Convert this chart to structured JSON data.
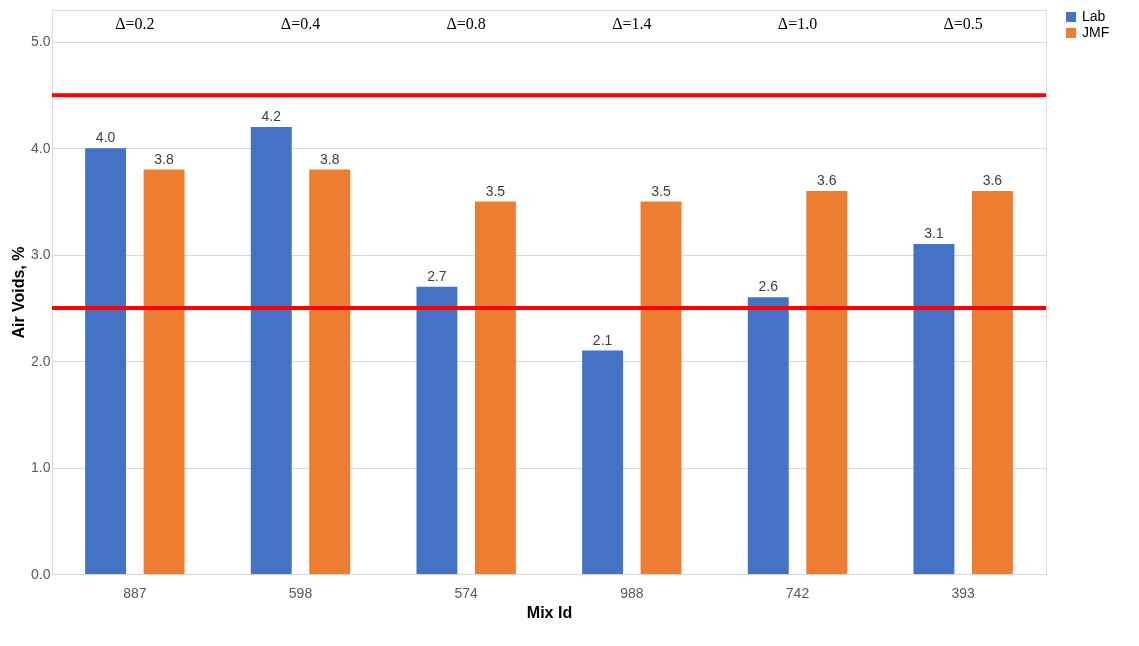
{
  "chart_data": {
    "type": "bar",
    "xlabel": "Mix Id",
    "ylabel": "Air Voids, %",
    "categories": [
      "887",
      "598",
      "574",
      "988",
      "742",
      "393"
    ],
    "series": [
      {
        "name": "Lab",
        "color": "#4472c4",
        "values": [
          4.0,
          4.2,
          2.7,
          2.1,
          2.6,
          3.1
        ],
        "value_labels": [
          "4.0",
          "4.2",
          "2.7",
          "2.1",
          "2.6",
          "3.1"
        ]
      },
      {
        "name": "JMF",
        "color": "#ed7d31",
        "values": [
          3.8,
          3.8,
          3.5,
          3.5,
          3.6,
          3.6
        ],
        "value_labels": [
          "3.8",
          "3.8",
          "3.5",
          "3.5",
          "3.6",
          "3.6"
        ]
      }
    ],
    "ylim": [
      0,
      5.3
    ],
    "yticks": [
      {
        "value": 0,
        "label": "0.0"
      },
      {
        "value": 1,
        "label": "1.0"
      },
      {
        "value": 2,
        "label": "2.0"
      },
      {
        "value": 3,
        "label": "3.0"
      },
      {
        "value": 4,
        "label": "4.0"
      },
      {
        "value": 5,
        "label": "5.0"
      }
    ],
    "grid": "y",
    "legend": "right",
    "ref_lines": [
      {
        "axis": "y",
        "value": 4.5,
        "color": "#ff0000"
      },
      {
        "axis": "y",
        "value": 2.5,
        "color": "#ff0000"
      }
    ],
    "annotations": [
      "Δ=0.2",
      "Δ=0.4",
      "Δ=0.8",
      "Δ=1.4",
      "Δ=1.0",
      "Δ=0.5"
    ]
  }
}
